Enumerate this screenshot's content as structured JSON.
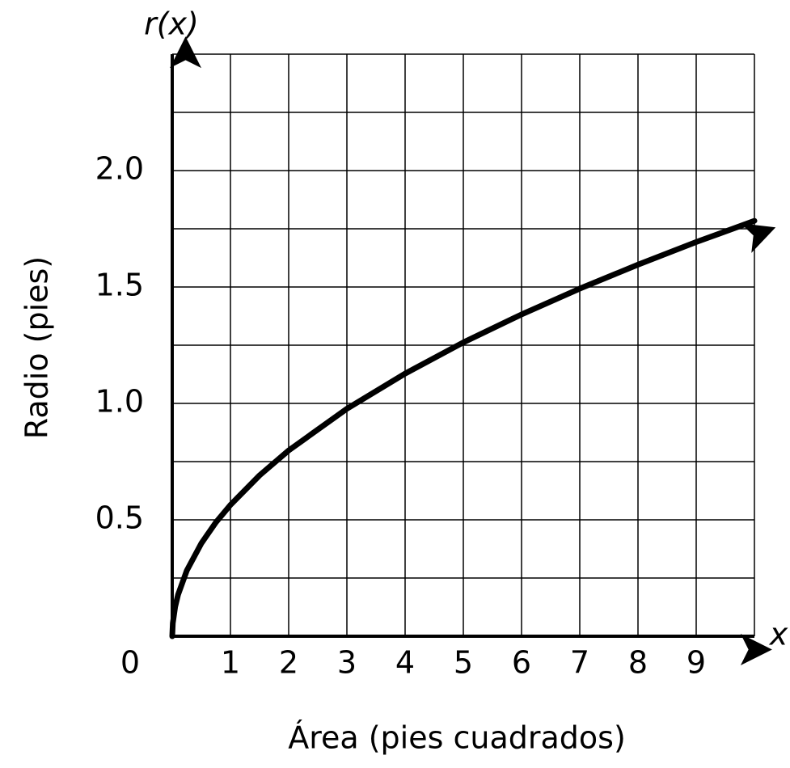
{
  "chart_data": {
    "type": "line",
    "title": "r(x)",
    "x_axis_symbol": "x",
    "x_label": "Área (pies cuadrados)",
    "y_label": "Radio (pies)",
    "xlim": [
      0,
      10
    ],
    "ylim": [
      0,
      2.5
    ],
    "xticks": [
      0,
      1,
      2,
      3,
      4,
      5,
      6,
      7,
      8,
      9
    ],
    "yticks": [
      0.5,
      {
        "value": 1,
        "label": "1.0"
      },
      1.5,
      {
        "value": 2,
        "label": "2.0"
      }
    ],
    "grid": true,
    "xgrid": [
      1,
      2,
      3,
      4,
      5,
      6,
      7,
      8,
      9,
      10
    ],
    "ygrid": [
      0.25,
      0.5,
      0.75,
      1,
      1.25,
      1.5,
      1.75,
      2,
      2.25,
      2.5
    ],
    "x": [
      0,
      0.01,
      0.05,
      0.1,
      0.25,
      0.5,
      0.75,
      1,
      1.5,
      2,
      3,
      4,
      5,
      6,
      7,
      8,
      9,
      10
    ],
    "series": [
      {
        "color": "#000000",
        "values": [
          0,
          0.056,
          0.126,
          0.178,
          0.282,
          0.399,
          0.489,
          0.564,
          0.691,
          0.798,
          0.977,
          1.128,
          1.262,
          1.382,
          1.493,
          1.596,
          1.693,
          1.784
        ]
      }
    ]
  }
}
